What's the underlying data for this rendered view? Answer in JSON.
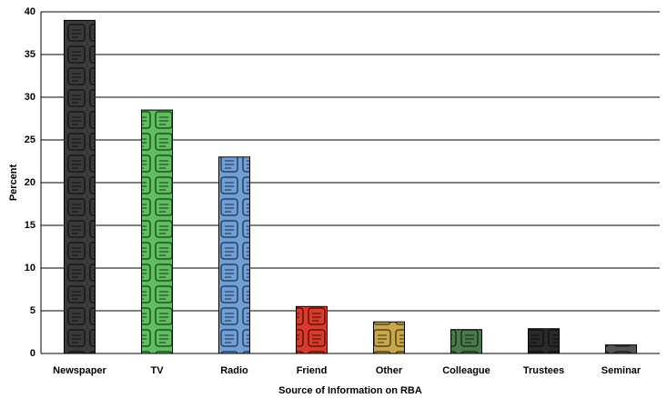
{
  "chart_data": {
    "type": "bar",
    "x_label": "Source of Information on RBA",
    "y_label": "Percent",
    "categories": [
      "Newspaper",
      "TV",
      "Radio",
      "Friend",
      "Other",
      "Colleague",
      "Trustees",
      "Seminar"
    ],
    "values": [
      39,
      28.5,
      23,
      5.5,
      3.7,
      2.8,
      2.9,
      1
    ],
    "colors": [
      "#3a3a3a",
      "#5fbf5f",
      "#6f9fd8",
      "#d93a2a",
      "#c8a84a",
      "#4a7a4a",
      "#2a2a2a",
      "#555555"
    ],
    "ylim": [
      0,
      40
    ],
    "yticks": [
      0,
      5,
      10,
      15,
      20,
      25,
      30,
      35,
      40
    ],
    "grid": true
  }
}
